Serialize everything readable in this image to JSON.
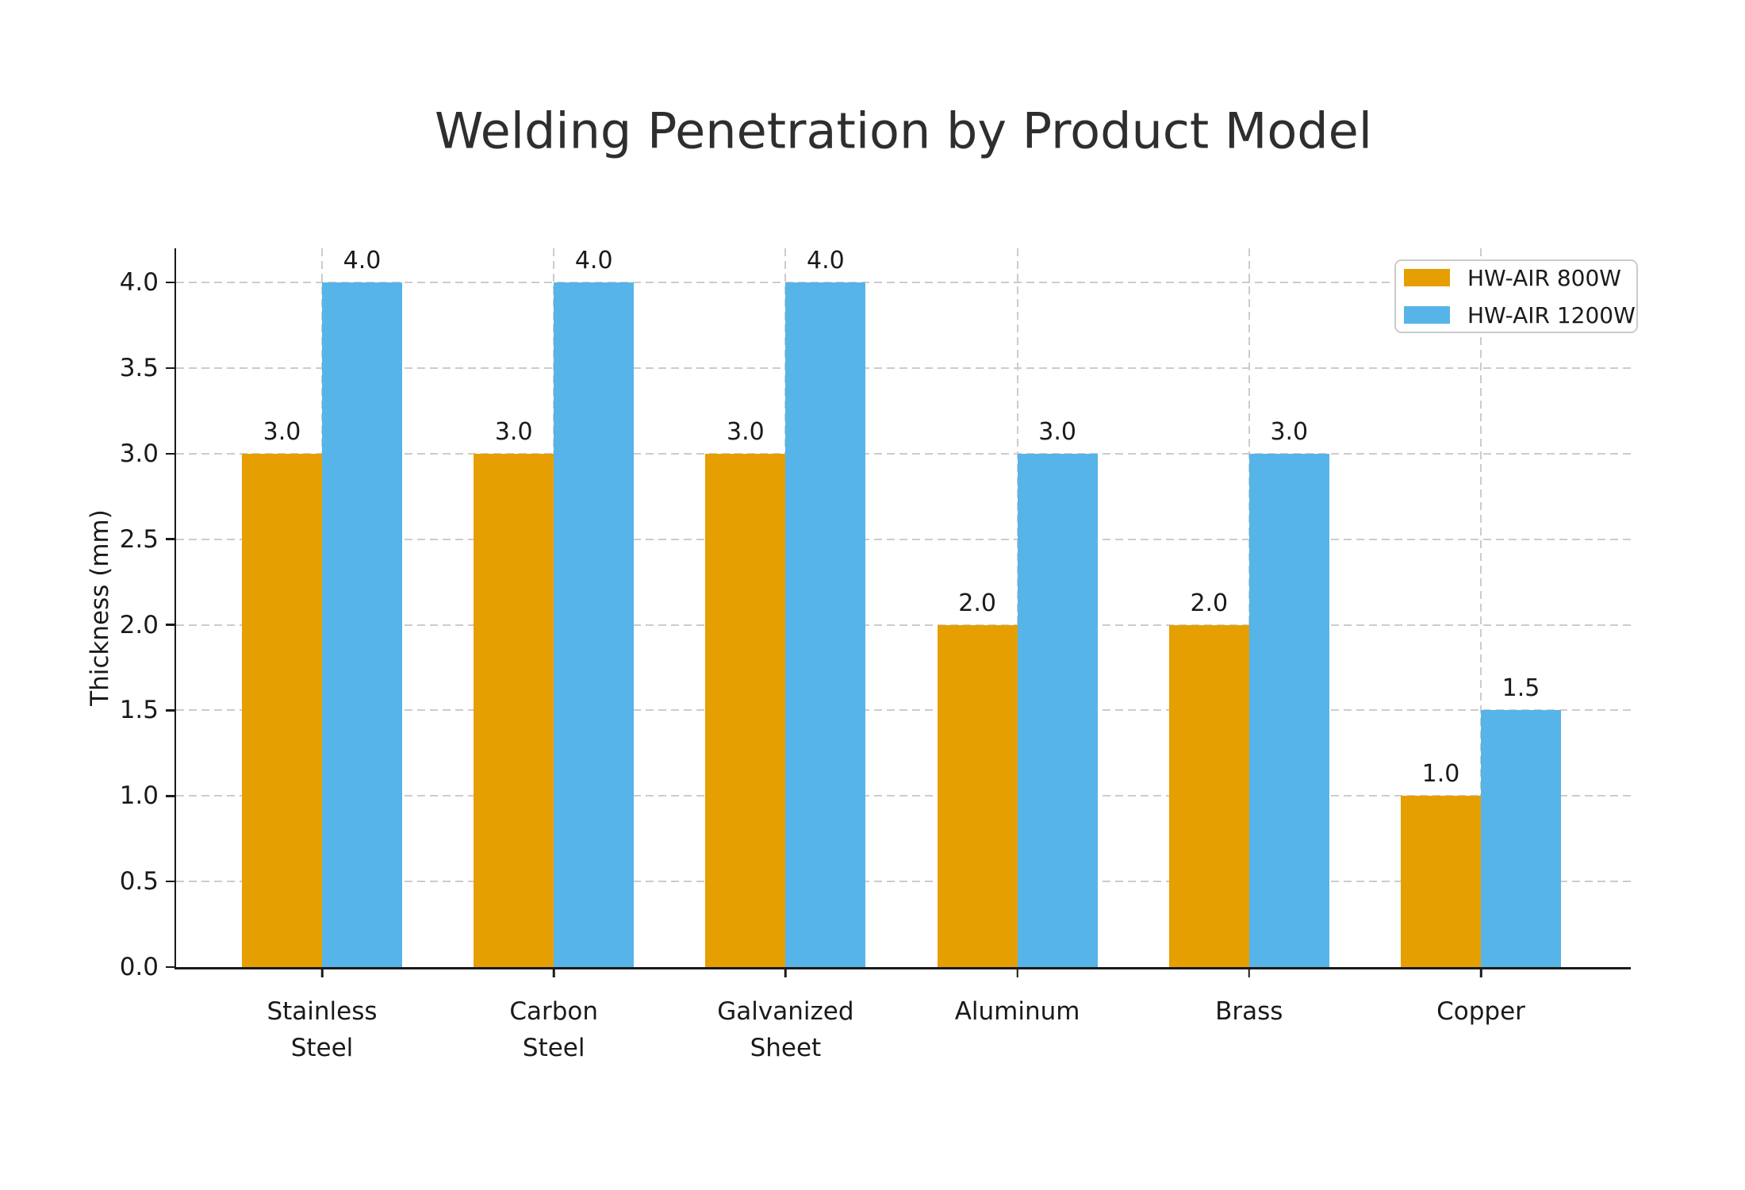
{
  "title": "Welding Penetration by Product Model",
  "chart_data": {
    "type": "bar",
    "title": "Welding Penetration by Product Model",
    "categories": [
      "Stainless Steel",
      "Carbon Steel",
      "Galvanized Sheet",
      "Aluminum",
      "Brass",
      "Copper"
    ],
    "category_label_lines": [
      [
        "Stainless",
        "Steel"
      ],
      [
        "Carbon",
        "Steel"
      ],
      [
        "Galvanized",
        "Sheet"
      ],
      [
        "Aluminum"
      ],
      [
        "Brass"
      ],
      [
        "Copper"
      ]
    ],
    "series": [
      {
        "name": "HW-AIR 800W",
        "color": "#E69F00",
        "values": [
          3.0,
          3.0,
          3.0,
          2.0,
          2.0,
          1.0
        ],
        "value_labels": [
          "3.0",
          "3.0",
          "3.0",
          "2.0",
          "2.0",
          "1.0"
        ]
      },
      {
        "name": "HW-AIR 1200W",
        "color": "#56B4E9",
        "values": [
          4.0,
          4.0,
          4.0,
          3.0,
          3.0,
          1.5
        ],
        "value_labels": [
          "4.0",
          "4.0",
          "4.0",
          "3.0",
          "3.0",
          "1.5"
        ]
      }
    ],
    "xlabel": "",
    "ylabel": "Thickness (mm)",
    "ylim": [
      0.0,
      4.2
    ],
    "yticks": [
      0.0,
      0.5,
      1.0,
      1.5,
      2.0,
      2.5,
      3.0,
      3.5,
      4.0
    ],
    "ytick_labels": [
      "0.0",
      "0.5",
      "1.0",
      "1.5",
      "2.0",
      "2.5",
      "3.0",
      "3.5",
      "4.0"
    ],
    "grid": {
      "horizontal": true,
      "vertical": true,
      "style": "dashed",
      "color": "#cccccc"
    },
    "legend": {
      "position": "upper right",
      "entries": [
        "HW-AIR 800W",
        "HW-AIR 1200W"
      ]
    }
  },
  "colors": {
    "series_800w": "#E69F00",
    "series_1200w": "#56B4E9",
    "grid": "#cccccc",
    "axis": "#1a1a1a",
    "text": "#1a1a1a",
    "title_text": "#2e2e2e",
    "legend_border": "#cbcbcb",
    "background": "#ffffff"
  }
}
